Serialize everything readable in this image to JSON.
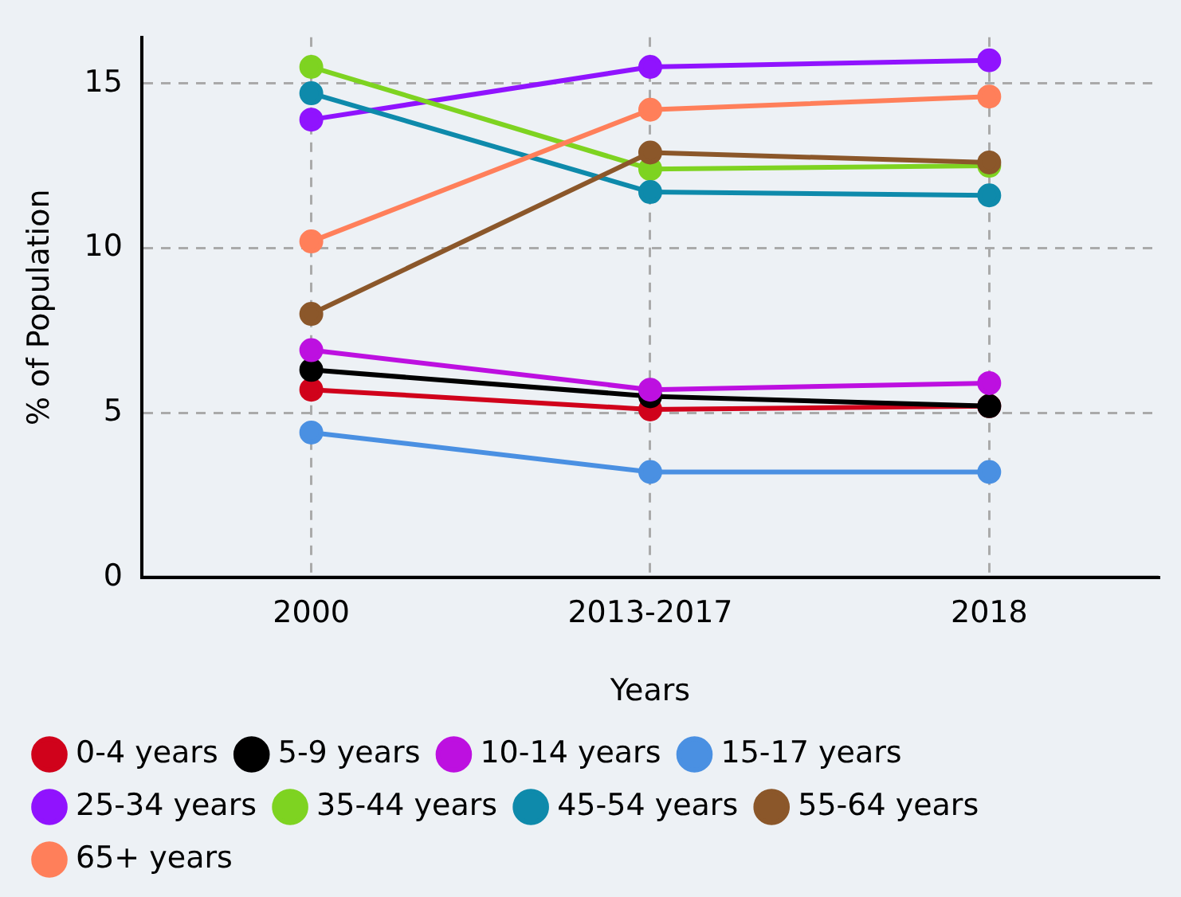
{
  "chart_data": {
    "type": "line",
    "xlabel": "Years",
    "ylabel": "% of Population",
    "categories": [
      "2000",
      "2013-2017",
      "2018"
    ],
    "series": [
      {
        "name": "0-4 years",
        "color": "#d0021b",
        "values": [
          5.7,
          5.1,
          5.2
        ]
      },
      {
        "name": "5-9 years",
        "color": "#000000",
        "values": [
          6.3,
          5.5,
          5.2
        ]
      },
      {
        "name": "10-14 years",
        "color": "#bd10e0",
        "values": [
          6.9,
          5.7,
          5.9
        ]
      },
      {
        "name": "15-17 years",
        "color": "#4a90e2",
        "values": [
          4.4,
          3.2,
          3.2
        ]
      },
      {
        "name": "25-34 years",
        "color": "#9013fe",
        "values": [
          13.9,
          15.5,
          15.7
        ]
      },
      {
        "name": "35-44 years",
        "color": "#7ed321",
        "values": [
          15.5,
          12.4,
          12.5
        ]
      },
      {
        "name": "45-54 years",
        "color": "#0e8aab",
        "values": [
          14.7,
          11.7,
          11.6
        ]
      },
      {
        "name": "55-64 years",
        "color": "#8b572a",
        "values": [
          8.0,
          12.9,
          12.6
        ]
      },
      {
        "name": "65+ years",
        "color": "#ff7f5a",
        "values": [
          10.2,
          14.2,
          14.6
        ]
      }
    ],
    "ylim": [
      0,
      16.4
    ],
    "yticks": [
      0,
      5,
      10,
      15
    ],
    "grid": true,
    "legend": "bottom",
    "marker": "circle",
    "line_style": "solid"
  }
}
